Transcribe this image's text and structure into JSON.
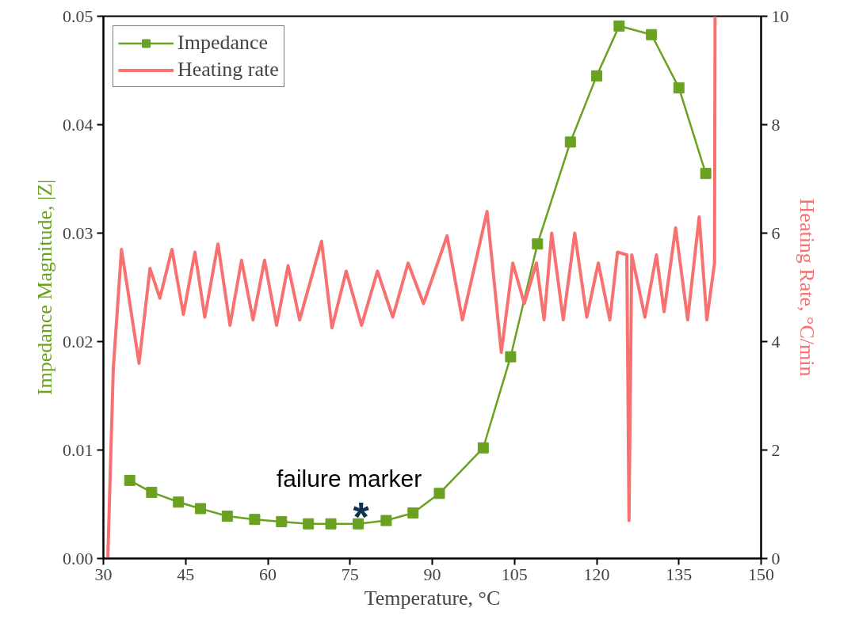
{
  "chart_data": {
    "type": "line",
    "xlabel": "Temperature, °C",
    "ylabel": "Impedance Magnitude, |Z|",
    "y2label": "Heating Rate, °C/min",
    "xlim": [
      30,
      150
    ],
    "xticks": [
      30,
      45,
      60,
      75,
      90,
      105,
      120,
      135,
      150
    ],
    "ylim": [
      0,
      0.05
    ],
    "yticks": [
      {
        "value": 0,
        "label": "0.00"
      },
      {
        "value": 0.01,
        "label": "0.01"
      },
      {
        "value": 0.02,
        "label": "0.02"
      },
      {
        "value": 0.03,
        "label": "0.03"
      },
      {
        "value": 0.04,
        "label": "0.04"
      },
      {
        "value": 0.05,
        "label": "0.05"
      }
    ],
    "y2lim": [
      0,
      10
    ],
    "y2ticks": [
      0,
      2,
      4,
      6,
      8,
      10
    ],
    "grid": false,
    "legend": "top left",
    "series": [
      {
        "name": "Impedance",
        "color": "#6aa121",
        "marker": "square",
        "line_style": "solid",
        "x": [
          34.8,
          38.8,
          43.7,
          47.7,
          52.6,
          57.6,
          62.5,
          67.4,
          71.5,
          76.5,
          81.6,
          86.5,
          91.3,
          99.3,
          104.3,
          109.2,
          115.2,
          120.0,
          124.1,
          130.0,
          135.0,
          139.9
        ],
        "values": [
          0.0072,
          0.0061,
          0.0052,
          0.0046,
          0.0039,
          0.0036,
          0.0034,
          0.0032,
          0.0032,
          0.0032,
          0.0035,
          0.0042,
          0.006,
          0.0102,
          0.0186,
          0.029,
          0.0384,
          0.0445,
          0.0491,
          0.0483,
          0.0434,
          0.0355
        ]
      },
      {
        "name": "Heating rate",
        "axis": "y2",
        "color": "#f87171",
        "marker": "none",
        "line_style": "solid",
        "x": [
          30.8,
          31.8,
          33.3,
          36.5,
          38.5,
          40.3,
          42.5,
          44.6,
          46.7,
          48.5,
          50.9,
          53.1,
          55.2,
          57.3,
          59.4,
          61.6,
          63.7,
          65.8,
          69.8,
          71.7,
          74.3,
          77.1,
          80.0,
          82.8,
          85.6,
          88.4,
          92.7,
          95.5,
          100.0,
          102.6,
          104.7,
          106.8,
          109.0,
          110.4,
          111.8,
          113.9,
          116.0,
          118.2,
          120.3,
          122.4,
          123.8,
          125.5,
          125.9,
          126.4,
          128.8,
          130.9,
          132.3,
          134.4,
          136.6,
          138.7,
          140.1,
          141.5,
          141.6
        ],
        "values": [
          0,
          3.5,
          5.7,
          3.6,
          5.35,
          4.8,
          5.7,
          4.5,
          5.65,
          4.45,
          5.8,
          4.3,
          5.5,
          4.4,
          5.5,
          4.3,
          5.4,
          4.4,
          5.85,
          4.25,
          5.3,
          4.3,
          5.3,
          4.45,
          5.45,
          4.7,
          5.95,
          4.4,
          6.4,
          3.8,
          5.45,
          4.7,
          5.45,
          4.4,
          6.0,
          4.4,
          6.0,
          4.45,
          5.45,
          4.4,
          5.65,
          5.6,
          0.7,
          5.6,
          4.45,
          5.6,
          4.55,
          6.1,
          4.4,
          6.3,
          4.4,
          5.45,
          10
        ]
      }
    ],
    "annotations": [
      "failure marker",
      {
        "text": "*",
        "x": 77,
        "y": 0.0038
      }
    ]
  }
}
